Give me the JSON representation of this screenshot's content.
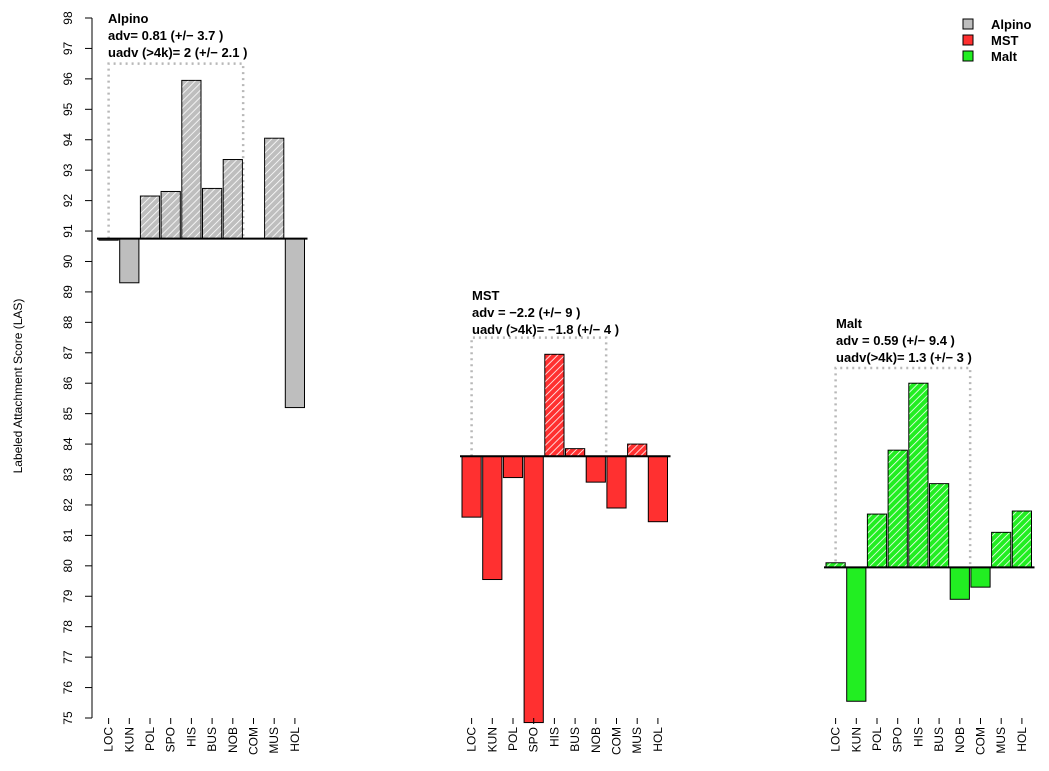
{
  "chart_data": {
    "type": "bar",
    "ylabel": "Labeled Attachment Score (LAS)",
    "ylim": [
      75,
      98
    ],
    "yticks": [
      75,
      76,
      77,
      78,
      79,
      80,
      81,
      82,
      83,
      84,
      85,
      86,
      87,
      88,
      89,
      90,
      91,
      92,
      93,
      94,
      95,
      96,
      97,
      98
    ],
    "categories": [
      "LOC",
      "KUN",
      "POL",
      "SPO",
      "HIS",
      "BUS",
      "NOB",
      "COM",
      "MUS",
      "HOL"
    ],
    "legend": {
      "position": "top-right",
      "entries": [
        {
          "name": "Alpino",
          "color": "#bebebe"
        },
        {
          "name": "MST",
          "color": "#ff3030"
        },
        {
          "name": "Malt",
          "color": "#22ee22"
        }
      ]
    },
    "groups": [
      {
        "name": "Alpino",
        "color": "#bebebe",
        "baseline": 90.75,
        "values": [
          90.7,
          89.3,
          92.15,
          92.3,
          95.95,
          92.4,
          93.35,
          90.75,
          94.05,
          85.2
        ],
        "annotation": [
          "Alpino",
          "adv= 0.81 (+/− 3.7 )",
          "uadv (>4k)= 2 (+/− 2.1 )"
        ]
      },
      {
        "name": "MST",
        "color": "#ff3030",
        "baseline": 83.6,
        "values": [
          81.6,
          79.55,
          82.9,
          74.85,
          86.95,
          83.85,
          82.75,
          81.9,
          84.0,
          81.45
        ],
        "annotation": [
          "MST",
          "adv = −2.2 (+/− 9 )",
          "uadv (>4k)= −1.8 (+/− 4 )"
        ]
      },
      {
        "name": "Malt",
        "color": "#22ee22",
        "baseline": 79.95,
        "values": [
          80.1,
          75.55,
          81.7,
          83.8,
          86.0,
          82.7,
          78.9,
          79.3,
          81.1,
          81.8
        ],
        "annotation": [
          "Malt",
          "adv = 0.59 (+/− 9.4 )",
          "uadv(>4k)= 1.3 (+/− 3 )"
        ]
      }
    ]
  }
}
